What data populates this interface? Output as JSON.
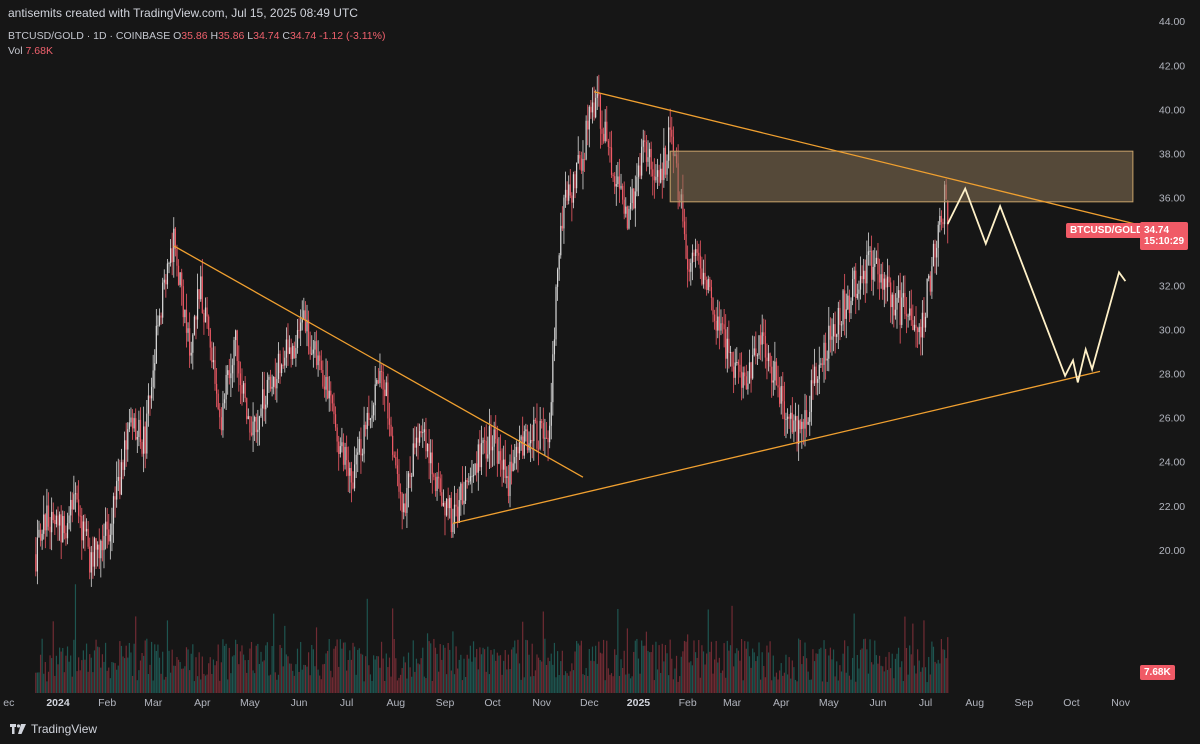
{
  "header": {
    "credit": "antisemits created with TradingView.com, Jul 15, 2025 08:49 UTC",
    "symbol": "BTCUSD/GOLD · 1D · COINBASE",
    "open_label": "O",
    "open": "35.86",
    "high_label": "H",
    "high": "35.86",
    "low_label": "L",
    "low": "34.74",
    "close_label": "C",
    "close": "34.74",
    "change": "-1.12 (-3.11%)",
    "vol_label": "Vol",
    "vol_value": "7.68K"
  },
  "tags": {
    "symbol": "BTCUSD/GOLD",
    "price": "34.74",
    "countdown": "15:10:29",
    "volume": "7.68K"
  },
  "footer": {
    "brand": "TradingView"
  },
  "colors": {
    "background": "#161616",
    "up": "#d9d9d9",
    "down": "#f05a66",
    "trendline": "#f0a030",
    "zone": "#8a7458",
    "projection": "#fff1c8",
    "axis_text": "#b2b5be"
  },
  "chart_data": {
    "type": "candlestick",
    "y_ticks": [
      "20.00",
      "22.00",
      "24.00",
      "26.00",
      "28.00",
      "30.00",
      "32.00",
      "34.00",
      "36.00",
      "38.00",
      "40.00",
      "42.00",
      "44.00"
    ],
    "y_tick_values": [
      20,
      22,
      24,
      26,
      28,
      30,
      32,
      34,
      36,
      38,
      40,
      42,
      44
    ],
    "x_ticks": [
      "ec",
      "2024",
      "Feb",
      "Mar",
      "Apr",
      "May",
      "Jun",
      "Jul",
      "Aug",
      "Sep",
      "Oct",
      "Nov",
      "Dec",
      "2025",
      "Feb",
      "Mar",
      "Apr",
      "May",
      "Jun",
      "Jul",
      "Aug",
      "Sep",
      "Oct",
      "Nov"
    ],
    "x_tick_dates": [
      "2023-12-01",
      "2024-01-01",
      "2024-02-01",
      "2024-03-01",
      "2024-04-01",
      "2024-05-01",
      "2024-06-01",
      "2024-07-01",
      "2024-08-01",
      "2024-09-01",
      "2024-10-01",
      "2024-11-01",
      "2024-12-01",
      "2025-01-01",
      "2025-02-01",
      "2025-03-01",
      "2025-04-01",
      "2025-05-01",
      "2025-06-01",
      "2025-07-01",
      "2025-08-01",
      "2025-09-01",
      "2025-10-01",
      "2025-11-01"
    ],
    "ylim": [
      13.5,
      44.6
    ],
    "close_path": [
      [
        "2023-12-18",
        19.8
      ],
      [
        "2023-12-23",
        21.6
      ],
      [
        "2024-01-03",
        20.8
      ],
      [
        "2024-01-12",
        22.0
      ],
      [
        "2024-01-22",
        19.5
      ],
      [
        "2024-02-02",
        21.0
      ],
      [
        "2024-02-16",
        25.5
      ],
      [
        "2024-02-25",
        24.8
      ],
      [
        "2024-03-04",
        30.5
      ],
      [
        "2024-03-14",
        33.8
      ],
      [
        "2024-03-24",
        29.0
      ],
      [
        "2024-03-31",
        32.0
      ],
      [
        "2024-04-13",
        26.0
      ],
      [
        "2024-04-22",
        29.5
      ],
      [
        "2024-05-01",
        25.5
      ],
      [
        "2024-05-18",
        28.0
      ],
      [
        "2024-06-05",
        30.3
      ],
      [
        "2024-06-15",
        28.0
      ],
      [
        "2024-06-22",
        26.0
      ],
      [
        "2024-07-05",
        23.2
      ],
      [
        "2024-07-14",
        26.0
      ],
      [
        "2024-07-23",
        28.5
      ],
      [
        "2024-08-05",
        21.5
      ],
      [
        "2024-08-15",
        25.5
      ],
      [
        "2024-09-06",
        21.3
      ],
      [
        "2024-09-18",
        24.0
      ],
      [
        "2024-10-01",
        25.0
      ],
      [
        "2024-10-10",
        23.0
      ],
      [
        "2024-10-22",
        25.3
      ],
      [
        "2024-11-05",
        25.0
      ],
      [
        "2024-11-13",
        35.0
      ],
      [
        "2024-11-22",
        36.8
      ],
      [
        "2024-12-05",
        40.5
      ],
      [
        "2024-12-16",
        37.5
      ],
      [
        "2024-12-25",
        35.0
      ],
      [
        "2025-01-05",
        38.5
      ],
      [
        "2025-01-15",
        36.8
      ],
      [
        "2025-01-21",
        38.8
      ],
      [
        "2025-02-01",
        33.5
      ],
      [
        "2025-02-10",
        32.8
      ],
      [
        "2025-02-20",
        30.5
      ],
      [
        "2025-03-01",
        28.0
      ],
      [
        "2025-03-10",
        27.5
      ],
      [
        "2025-03-20",
        29.5
      ],
      [
        "2025-04-01",
        27.0
      ],
      [
        "2025-04-09",
        25.2
      ],
      [
        "2025-04-15",
        25.8
      ],
      [
        "2025-04-25",
        28.5
      ],
      [
        "2025-05-08",
        30.8
      ],
      [
        "2025-05-18",
        32.0
      ],
      [
        "2025-05-28",
        33.0
      ],
      [
        "2025-06-08",
        31.5
      ],
      [
        "2025-06-18",
        30.8
      ],
      [
        "2025-06-28",
        29.7
      ],
      [
        "2025-07-04",
        32.5
      ],
      [
        "2025-07-10",
        34.8
      ],
      [
        "2025-07-13",
        35.8
      ],
      [
        "2025-07-15",
        34.74
      ]
    ],
    "volume_max": 22000,
    "volume_last": 7680,
    "annotations": {
      "resistance_zone": {
        "from": "2025-01-21",
        "to": "2025-11-10",
        "y_low": 35.8,
        "y_high": 38.1
      },
      "trendlines": [
        {
          "from": [
            "2024-03-14",
            33.8
          ],
          "to": [
            "2024-11-27",
            23.3
          ]
        },
        {
          "from": [
            "2024-09-06",
            21.2
          ],
          "to": [
            "2025-10-19",
            28.1
          ]
        },
        {
          "from": [
            "2024-12-04",
            40.8
          ],
          "to": [
            "2025-11-10",
            34.8
          ]
        }
      ],
      "projection": [
        [
          "2025-07-15",
          34.8
        ],
        [
          "2025-07-26",
          36.4
        ],
        [
          "2025-08-08",
          33.9
        ],
        [
          "2025-08-17",
          35.6
        ],
        [
          "2025-09-27",
          27.9
        ],
        [
          "2025-10-02",
          28.6
        ],
        [
          "2025-10-05",
          27.6
        ],
        [
          "2025-10-10",
          29.1
        ],
        [
          "2025-10-14",
          28.2
        ],
        [
          "2025-10-31",
          32.6
        ],
        [
          "2025-11-04",
          32.2
        ]
      ]
    }
  }
}
